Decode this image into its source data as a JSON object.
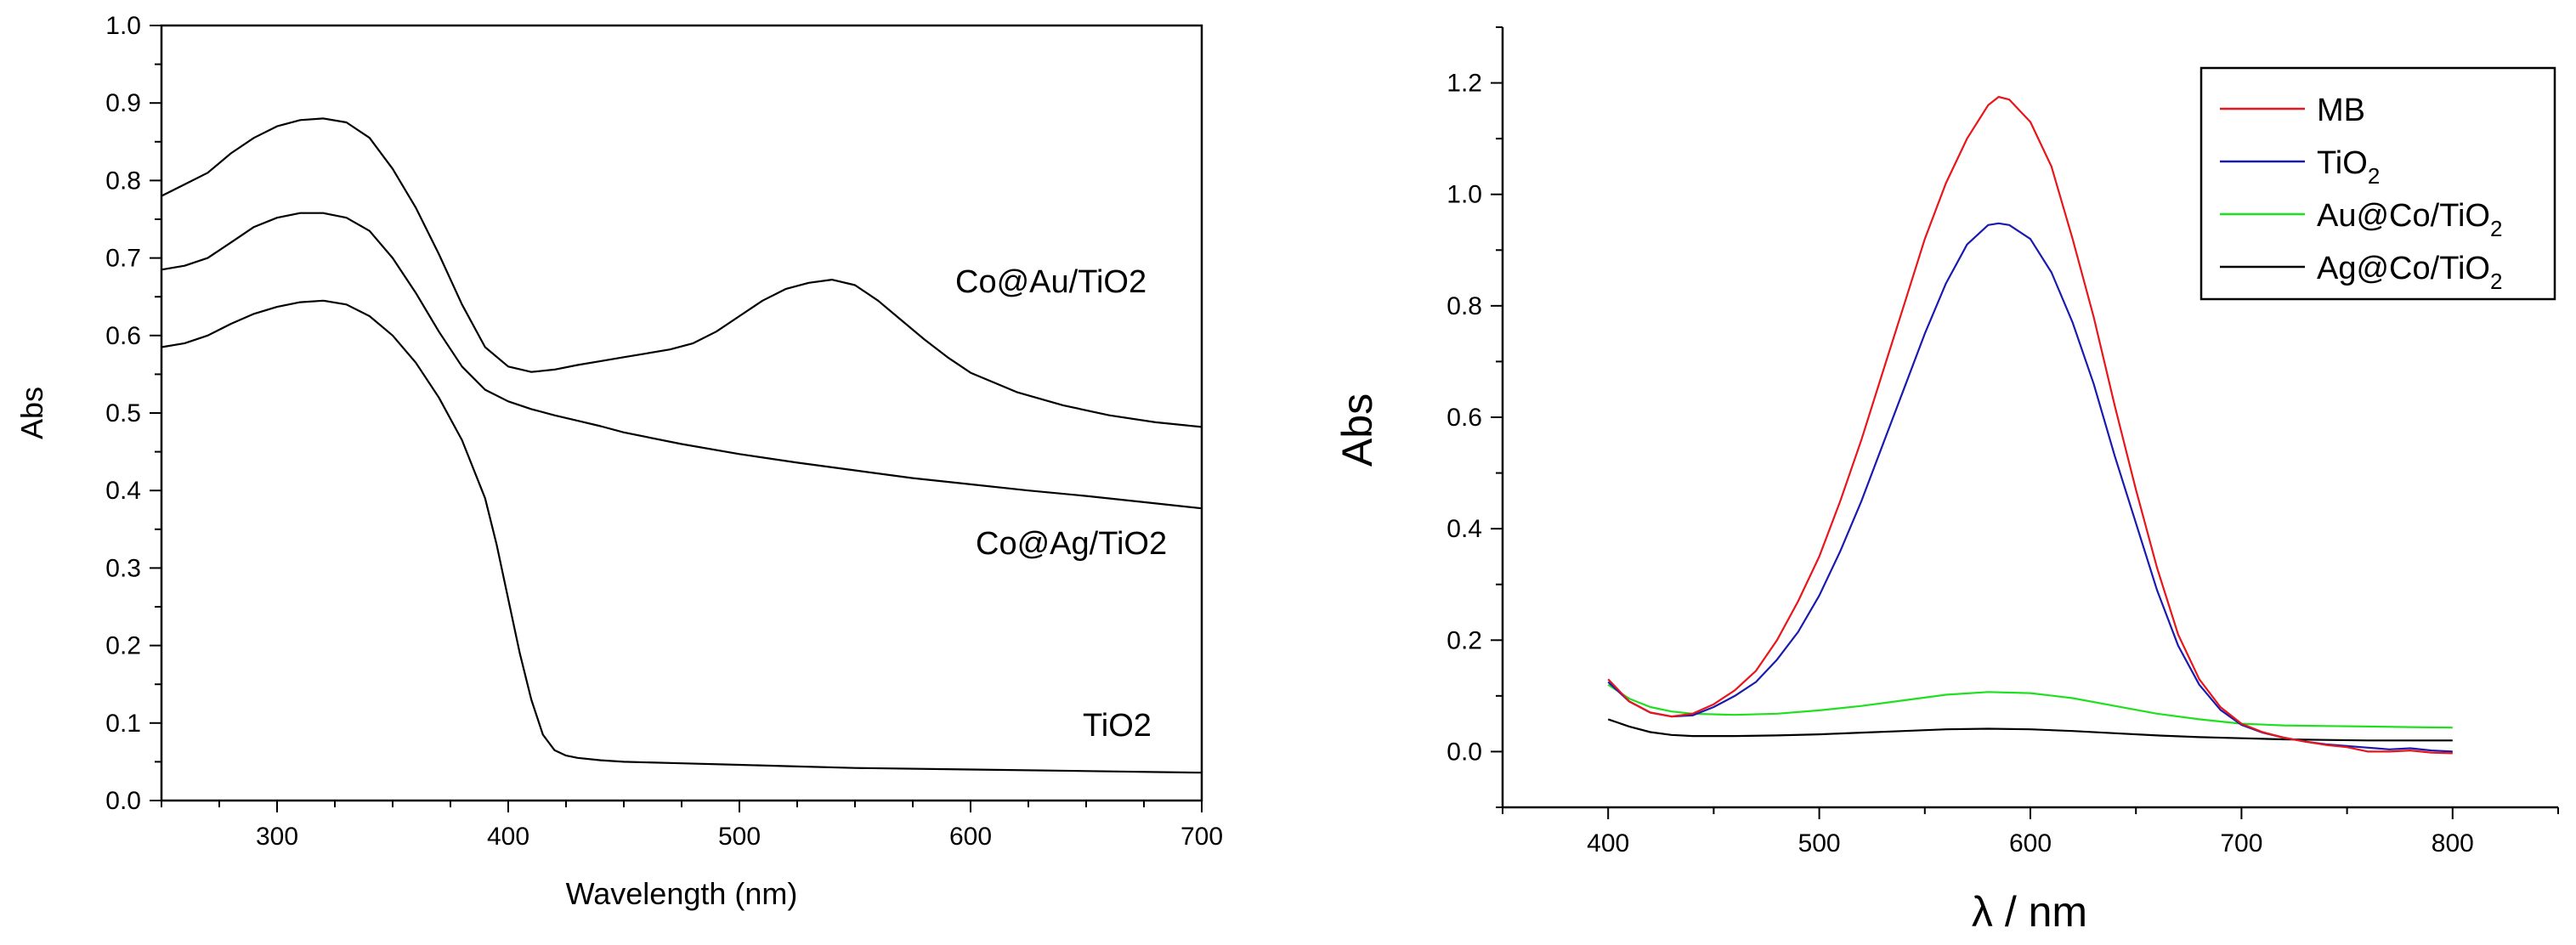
{
  "chart_data": [
    {
      "type": "line",
      "xlabel": "Wavelength (nm)",
      "ylabel": "Abs",
      "xlim": [
        250,
        700
      ],
      "ylim": [
        0.0,
        1.0
      ],
      "x_ticks": [
        300,
        400,
        500,
        600,
        700
      ],
      "y_ticks": [
        0.0,
        0.1,
        0.2,
        0.3,
        0.4,
        0.5,
        0.6,
        0.7,
        0.8,
        0.9,
        1.0
      ],
      "y_tick_labels": [
        "0.0",
        "0.1",
        "0.2",
        "0.3",
        "0.4",
        "0.5",
        "0.6",
        "0.7",
        "0.8",
        "0.9",
        "1.0"
      ],
      "series": [
        {
          "name": "Co@Au/TiO2",
          "color": "#000000",
          "x": [
            250,
            260,
            270,
            280,
            290,
            300,
            310,
            320,
            330,
            340,
            350,
            360,
            370,
            380,
            390,
            400,
            410,
            420,
            430,
            440,
            450,
            460,
            470,
            480,
            490,
            500,
            510,
            520,
            530,
            540,
            550,
            560,
            570,
            580,
            590,
            600,
            620,
            640,
            660,
            680,
            700
          ],
          "y": [
            0.78,
            0.795,
            0.81,
            0.835,
            0.855,
            0.87,
            0.878,
            0.88,
            0.875,
            0.855,
            0.815,
            0.765,
            0.705,
            0.64,
            0.585,
            0.56,
            0.553,
            0.556,
            0.562,
            0.567,
            0.572,
            0.577,
            0.582,
            0.59,
            0.605,
            0.625,
            0.645,
            0.66,
            0.668,
            0.672,
            0.665,
            0.645,
            0.62,
            0.595,
            0.572,
            0.552,
            0.527,
            0.51,
            0.497,
            0.488,
            0.482
          ]
        },
        {
          "name": "Co@Ag/TiO2",
          "color": "#000000",
          "x": [
            250,
            260,
            270,
            280,
            290,
            300,
            310,
            320,
            330,
            340,
            350,
            360,
            370,
            380,
            390,
            400,
            410,
            420,
            430,
            440,
            450,
            475,
            500,
            525,
            550,
            575,
            600,
            625,
            650,
            675,
            700
          ],
          "y": [
            0.685,
            0.69,
            0.7,
            0.72,
            0.74,
            0.752,
            0.758,
            0.758,
            0.752,
            0.735,
            0.7,
            0.655,
            0.605,
            0.56,
            0.53,
            0.515,
            0.505,
            0.497,
            0.49,
            0.483,
            0.475,
            0.46,
            0.447,
            0.436,
            0.426,
            0.416,
            0.408,
            0.4,
            0.393,
            0.385,
            0.377
          ]
        },
        {
          "name": "TiO2",
          "color": "#000000",
          "x": [
            250,
            260,
            270,
            280,
            290,
            300,
            310,
            320,
            330,
            340,
            350,
            360,
            370,
            380,
            390,
            395,
            400,
            405,
            410,
            415,
            420,
            425,
            430,
            440,
            450,
            475,
            500,
            525,
            550,
            600,
            650,
            700
          ],
          "y": [
            0.585,
            0.59,
            0.6,
            0.615,
            0.628,
            0.637,
            0.643,
            0.645,
            0.64,
            0.625,
            0.6,
            0.565,
            0.52,
            0.465,
            0.39,
            0.33,
            0.26,
            0.19,
            0.13,
            0.085,
            0.065,
            0.058,
            0.055,
            0.052,
            0.05,
            0.048,
            0.046,
            0.044,
            0.042,
            0.04,
            0.038,
            0.036
          ]
        }
      ],
      "annotations": [
        "Co@Au/TiO2",
        "Co@Ag/TiO2",
        "TiO2"
      ]
    },
    {
      "type": "line",
      "xlabel": "λ / nm",
      "ylabel": "Abs",
      "xlim": [
        350,
        850
      ],
      "ylim": [
        -0.1,
        1.3
      ],
      "x_ticks": [
        400,
        500,
        600,
        700,
        800
      ],
      "y_ticks": [
        0.0,
        0.2,
        0.4,
        0.6,
        0.8,
        1.0,
        1.2
      ],
      "y_tick_labels": [
        "0.0",
        "0.2",
        "0.4",
        "0.6",
        "0.8",
        "1.0",
        "1.2"
      ],
      "legend_position": "top-right",
      "series": [
        {
          "name": "MB",
          "legend_main": "MB",
          "legend_sub": "",
          "legend_tail": "",
          "color": "#e8161b",
          "x": [
            400,
            410,
            420,
            430,
            440,
            450,
            460,
            470,
            480,
            490,
            500,
            510,
            520,
            530,
            540,
            550,
            560,
            570,
            580,
            585,
            590,
            600,
            610,
            620,
            630,
            640,
            650,
            660,
            670,
            680,
            690,
            700,
            710,
            720,
            730,
            740,
            750,
            760,
            770,
            780,
            790,
            800
          ],
          "y": [
            0.13,
            0.09,
            0.07,
            0.063,
            0.068,
            0.085,
            0.11,
            0.145,
            0.2,
            0.27,
            0.35,
            0.45,
            0.56,
            0.68,
            0.8,
            0.92,
            1.02,
            1.1,
            1.16,
            1.175,
            1.17,
            1.13,
            1.05,
            0.92,
            0.78,
            0.62,
            0.47,
            0.33,
            0.21,
            0.13,
            0.08,
            0.05,
            0.035,
            0.025,
            0.018,
            0.012,
            0.008,
            0.0,
            0.0,
            0.002,
            -0.002,
            -0.003
          ]
        },
        {
          "name": "TiO2",
          "legend_main": "TiO",
          "legend_sub": "2",
          "legend_tail": "",
          "color": "#1a1ab0",
          "x": [
            400,
            410,
            420,
            430,
            440,
            450,
            460,
            470,
            480,
            490,
            500,
            510,
            520,
            530,
            540,
            550,
            560,
            570,
            580,
            585,
            590,
            600,
            610,
            620,
            630,
            640,
            650,
            660,
            670,
            680,
            690,
            700,
            710,
            720,
            730,
            740,
            750,
            760,
            770,
            780,
            790,
            800
          ],
          "y": [
            0.125,
            0.09,
            0.07,
            0.063,
            0.065,
            0.08,
            0.1,
            0.125,
            0.165,
            0.215,
            0.28,
            0.36,
            0.45,
            0.55,
            0.65,
            0.75,
            0.84,
            0.91,
            0.945,
            0.948,
            0.945,
            0.92,
            0.86,
            0.77,
            0.66,
            0.53,
            0.41,
            0.29,
            0.19,
            0.12,
            0.075,
            0.048,
            0.034,
            0.025,
            0.018,
            0.013,
            0.01,
            0.007,
            0.004,
            0.006,
            0.002,
            0.0
          ]
        },
        {
          "name": "Au@Co/TiO2",
          "legend_main": "Au@Co/TiO",
          "legend_sub": "2",
          "legend_tail": "",
          "color": "#1fe01f",
          "x": [
            400,
            410,
            420,
            430,
            440,
            460,
            480,
            500,
            520,
            540,
            560,
            580,
            600,
            620,
            640,
            660,
            680,
            700,
            720,
            740,
            760,
            780,
            800
          ],
          "y": [
            0.12,
            0.095,
            0.08,
            0.072,
            0.068,
            0.066,
            0.068,
            0.074,
            0.082,
            0.092,
            0.102,
            0.107,
            0.105,
            0.096,
            0.082,
            0.068,
            0.058,
            0.05,
            0.047,
            0.046,
            0.045,
            0.044,
            0.043
          ]
        },
        {
          "name": "Ag@Co/TiO2",
          "legend_main": "Ag@Co/TiO",
          "legend_sub": "2",
          "legend_tail": "",
          "color": "#000000",
          "x": [
            400,
            410,
            420,
            430,
            440,
            460,
            480,
            500,
            520,
            540,
            560,
            580,
            600,
            620,
            640,
            660,
            680,
            700,
            720,
            740,
            760,
            780,
            800
          ],
          "y": [
            0.058,
            0.045,
            0.035,
            0.03,
            0.028,
            0.028,
            0.029,
            0.031,
            0.034,
            0.037,
            0.04,
            0.041,
            0.04,
            0.037,
            0.033,
            0.029,
            0.026,
            0.024,
            0.022,
            0.021,
            0.02,
            0.02,
            0.02
          ]
        }
      ]
    }
  ]
}
